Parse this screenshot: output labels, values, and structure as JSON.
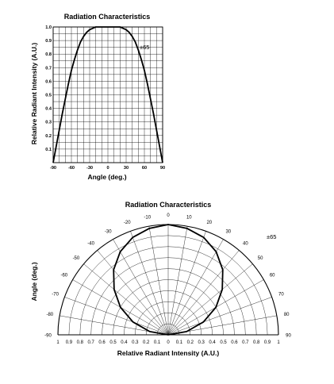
{
  "chart_data": [
    {
      "type": "line",
      "title": "Radiation Characteristics",
      "xlabel": "Angle (deg.)",
      "ylabel": "Relative Radiant Intensity (A.U.)",
      "xlim": [
        -90,
        90
      ],
      "ylim": [
        0,
        1.0
      ],
      "xticks": [
        "-90",
        "-60",
        "-30",
        "0",
        "30",
        "60",
        "90"
      ],
      "yticks": [
        "0.1",
        "0.2",
        "0.3",
        "0.4",
        "0.5",
        "0.6",
        "0.7",
        "0.8",
        "0.9",
        "1.0"
      ],
      "grid": true,
      "annotation": "±65",
      "series": [
        {
          "x": [
            -90,
            -85,
            -80,
            -75,
            -70,
            -65,
            -60,
            -55,
            -50,
            -45,
            -40,
            -35,
            -30,
            -25,
            -20,
            -15,
            -10,
            -5,
            0,
            5,
            10,
            15,
            20,
            25,
            30,
            35,
            40,
            45,
            50,
            55,
            60,
            65,
            70,
            75,
            80,
            85,
            90
          ],
          "values": [
            0.0,
            0.12,
            0.24,
            0.36,
            0.47,
            0.58,
            0.68,
            0.76,
            0.83,
            0.89,
            0.93,
            0.96,
            0.98,
            0.99,
            1.0,
            1.0,
            1.0,
            1.0,
            1.0,
            1.0,
            1.0,
            1.0,
            1.0,
            0.99,
            0.98,
            0.96,
            0.93,
            0.89,
            0.83,
            0.76,
            0.68,
            0.58,
            0.47,
            0.36,
            0.24,
            0.12,
            0.0
          ]
        }
      ]
    },
    {
      "type": "polar",
      "title": "Radiation Characteristics",
      "xlabel": "Relative Radiant Intensity (A.U.)",
      "ylabel": "Angle (deg.)",
      "angle_range": [
        -90,
        90
      ],
      "radius_range": [
        0,
        1
      ],
      "angle_ticks": [
        "-90",
        "-80",
        "-70",
        "-60",
        "-50",
        "-40",
        "-30",
        "-20",
        "-10",
        "0",
        "10",
        "20",
        "30",
        "40",
        "50",
        "60",
        "70",
        "80",
        "90"
      ],
      "radius_ticks": [
        "1",
        "0.9",
        "0.8",
        "0.7",
        "0.6",
        "0.5",
        "0.4",
        "0.3",
        "0.2",
        "0.1",
        "0",
        "0.1",
        "0.2",
        "0.3",
        "0.4",
        "0.5",
        "0.6",
        "0.7",
        "0.8",
        "0.9",
        "1"
      ],
      "grid": true,
      "annotation": "±65",
      "series": [
        {
          "angle": [
            -90,
            -80,
            -70,
            -60,
            -50,
            -40,
            -30,
            -20,
            -10,
            0,
            10,
            20,
            30,
            40,
            50,
            60,
            70,
            80,
            90
          ],
          "values": [
            0.0,
            0.17,
            0.34,
            0.5,
            0.64,
            0.77,
            0.87,
            0.94,
            0.98,
            1.0,
            0.98,
            0.94,
            0.87,
            0.77,
            0.64,
            0.5,
            0.34,
            0.17,
            0.0
          ]
        }
      ]
    }
  ]
}
